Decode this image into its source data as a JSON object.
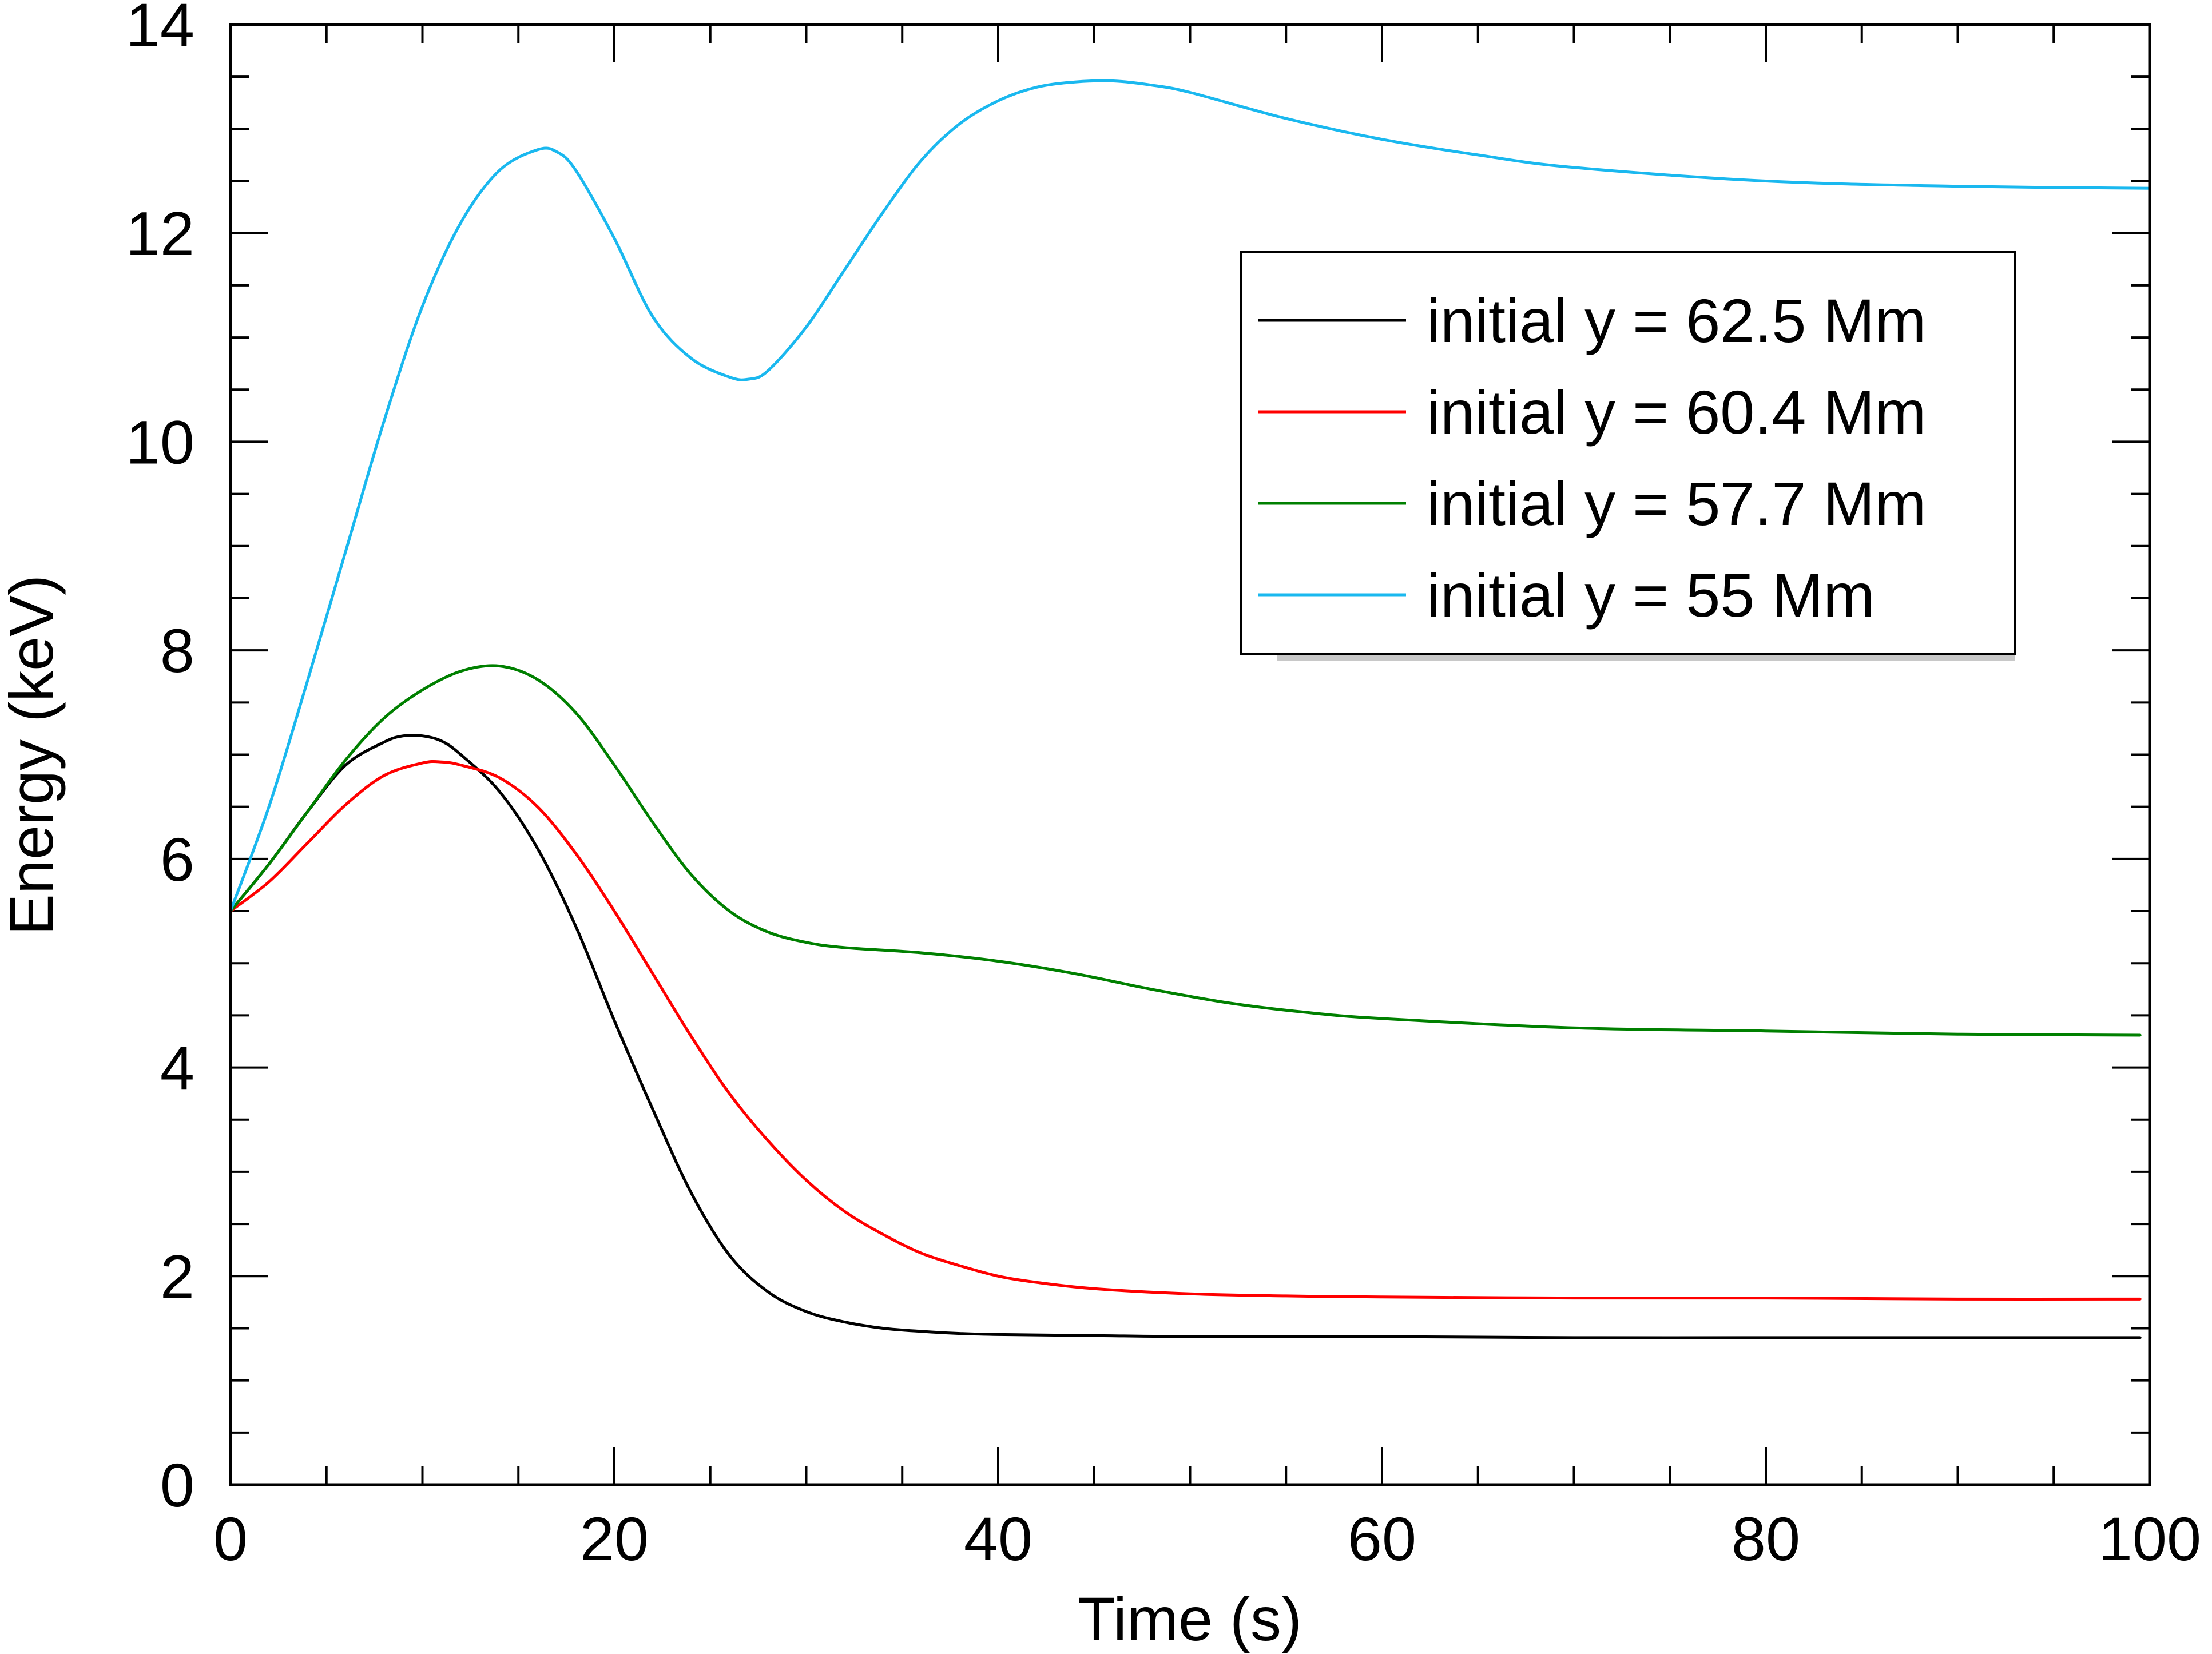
{
  "chart_data": {
    "type": "line",
    "title": "",
    "xlabel": "Time (s)",
    "ylabel": "Energy (keV)",
    "xlim": [
      0,
      100
    ],
    "ylim": [
      0,
      14
    ],
    "xticks": [
      0,
      20,
      40,
      60,
      80,
      100
    ],
    "yticks": [
      0,
      2,
      4,
      6,
      8,
      10,
      12,
      14
    ],
    "xtick_labels": [
      "0",
      "20",
      "40",
      "60",
      "80",
      "100"
    ],
    "ytick_labels": [
      "0",
      "2",
      "4",
      "6",
      "8",
      "10",
      "12",
      "14"
    ],
    "grid": false,
    "legend_position": "top-right",
    "series": [
      {
        "name": "initial y = 62.5 Mm",
        "color": "#000000",
        "x": [
          0,
          2,
          4,
          6,
          8,
          9,
          10,
          11,
          12,
          14,
          16,
          18,
          20,
          22,
          24,
          26,
          28,
          30,
          32,
          34,
          36,
          38,
          40,
          45,
          50,
          60,
          70,
          80,
          90,
          99.5
        ],
        "y": [
          5.5,
          5.95,
          6.45,
          6.9,
          7.12,
          7.18,
          7.18,
          7.13,
          7.0,
          6.65,
          6.1,
          5.35,
          4.45,
          3.6,
          2.8,
          2.2,
          1.85,
          1.66,
          1.56,
          1.5,
          1.47,
          1.45,
          1.44,
          1.43,
          1.42,
          1.42,
          1.41,
          1.41,
          1.41,
          1.41
        ]
      },
      {
        "name": "initial y = 60.4 Mm",
        "color": "#ff0000",
        "x": [
          0,
          2,
          4,
          6,
          8,
          10,
          11,
          12,
          14,
          16,
          18,
          20,
          22,
          24,
          26,
          28,
          30,
          32,
          34,
          36,
          38,
          40,
          42,
          45,
          50,
          55,
          60,
          70,
          80,
          90,
          99.5
        ],
        "y": [
          5.5,
          5.78,
          6.15,
          6.52,
          6.8,
          6.92,
          6.93,
          6.9,
          6.78,
          6.5,
          6.05,
          5.5,
          4.9,
          4.3,
          3.75,
          3.3,
          2.92,
          2.62,
          2.4,
          2.22,
          2.1,
          2.0,
          1.94,
          1.88,
          1.83,
          1.81,
          1.8,
          1.79,
          1.79,
          1.78,
          1.78
        ]
      },
      {
        "name": "initial y = 57.7 Mm",
        "color": "#008000",
        "x": [
          0,
          2,
          4,
          6,
          8,
          10,
          12,
          14,
          16,
          18,
          20,
          22,
          24,
          26,
          28,
          30,
          32,
          36,
          40,
          44,
          48,
          52,
          56,
          60,
          70,
          80,
          90,
          99.5
        ],
        "y": [
          5.5,
          5.95,
          6.45,
          6.95,
          7.35,
          7.62,
          7.8,
          7.85,
          7.72,
          7.4,
          6.9,
          6.35,
          5.85,
          5.5,
          5.3,
          5.2,
          5.15,
          5.1,
          5.02,
          4.9,
          4.75,
          4.62,
          4.53,
          4.47,
          4.38,
          4.35,
          4.32,
          4.31
        ]
      },
      {
        "name": "initial y = 55 Mm",
        "color": "#1ab8ef",
        "x": [
          0,
          2,
          4,
          6,
          8,
          10,
          12,
          14,
          16,
          17,
          18,
          20,
          22,
          24,
          26,
          27,
          28,
          30,
          32,
          34,
          36,
          38,
          40,
          42,
          44,
          46,
          48,
          50,
          55,
          60,
          65,
          70,
          80,
          90,
          100
        ],
        "y": [
          5.5,
          6.5,
          7.7,
          8.95,
          10.2,
          11.3,
          12.1,
          12.6,
          12.8,
          12.78,
          12.6,
          11.95,
          11.2,
          10.8,
          10.62,
          10.6,
          10.68,
          11.1,
          11.65,
          12.2,
          12.7,
          13.05,
          13.27,
          13.4,
          13.45,
          13.46,
          13.42,
          13.35,
          13.1,
          12.9,
          12.75,
          12.63,
          12.5,
          12.45,
          12.43
        ]
      }
    ]
  }
}
